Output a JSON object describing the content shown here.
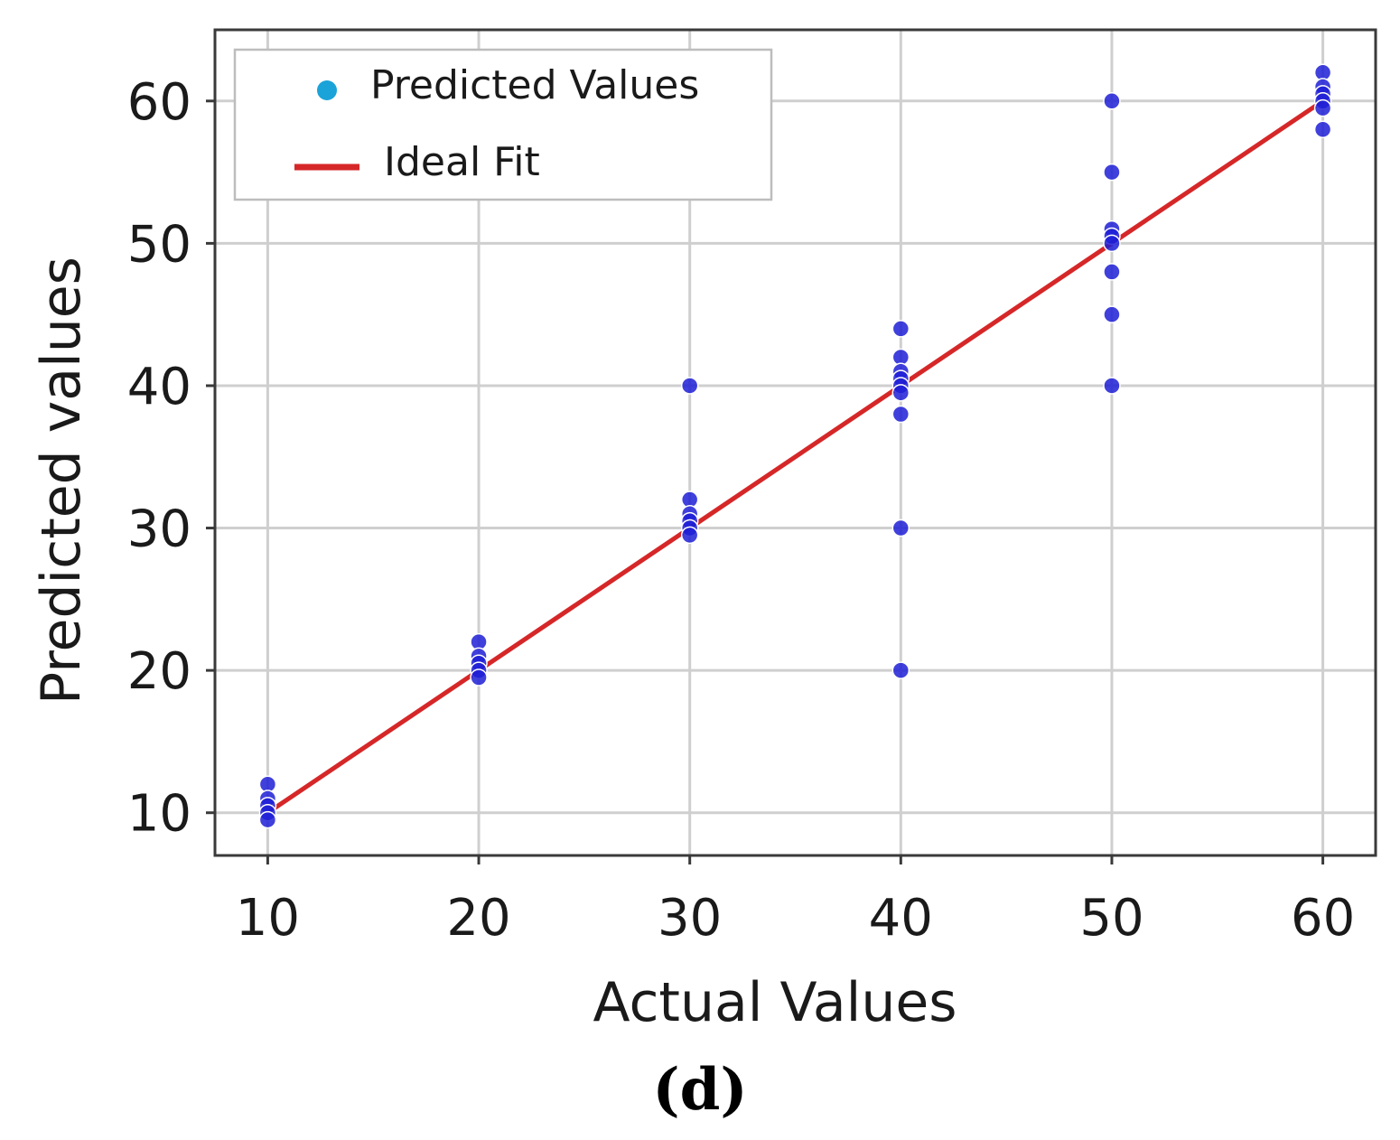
{
  "chart_data": {
    "type": "scatter",
    "xlabel": "Actual Values",
    "ylabel": "Predicted values",
    "panel_label": "(d)",
    "xlim": [
      7.5,
      62.5
    ],
    "ylim": [
      7.0,
      65.0
    ],
    "xticks": [
      10,
      20,
      30,
      40,
      50,
      60
    ],
    "yticks": [
      10,
      20,
      30,
      40,
      50,
      60
    ],
    "grid": true,
    "legend_position": "top-left",
    "legend": [
      {
        "label": "Predicted Values",
        "kind": "marker",
        "color": "#1aa3d9"
      },
      {
        "label": "Ideal Fit",
        "kind": "line",
        "color": "#d62728"
      }
    ],
    "series": [
      {
        "name": "Predicted Values",
        "kind": "scatter",
        "color": "#1f1fd6",
        "points": [
          [
            10,
            12
          ],
          [
            10,
            11
          ],
          [
            10,
            10.5
          ],
          [
            10,
            10
          ],
          [
            10,
            9.5
          ],
          [
            20,
            22
          ],
          [
            20,
            21
          ],
          [
            20,
            20.5
          ],
          [
            20,
            20
          ],
          [
            20,
            19.5
          ],
          [
            30,
            40
          ],
          [
            30,
            32
          ],
          [
            30,
            31
          ],
          [
            30,
            30.5
          ],
          [
            30,
            30
          ],
          [
            30,
            29.5
          ],
          [
            40,
            44
          ],
          [
            40,
            42
          ],
          [
            40,
            41
          ],
          [
            40,
            40.5
          ],
          [
            40,
            40
          ],
          [
            40,
            39.5
          ],
          [
            40,
            38
          ],
          [
            40,
            30
          ],
          [
            40,
            20
          ],
          [
            50,
            60
          ],
          [
            50,
            55
          ],
          [
            50,
            51
          ],
          [
            50,
            50.5
          ],
          [
            50,
            50
          ],
          [
            50,
            48
          ],
          [
            50,
            45
          ],
          [
            50,
            40
          ],
          [
            60,
            62
          ],
          [
            60,
            61
          ],
          [
            60,
            60.5
          ],
          [
            60,
            60
          ],
          [
            60,
            59.5
          ],
          [
            60,
            58
          ]
        ]
      },
      {
        "name": "Ideal Fit",
        "kind": "line",
        "color": "#d62728",
        "points": [
          [
            10,
            10
          ],
          [
            60,
            60
          ]
        ]
      }
    ]
  }
}
